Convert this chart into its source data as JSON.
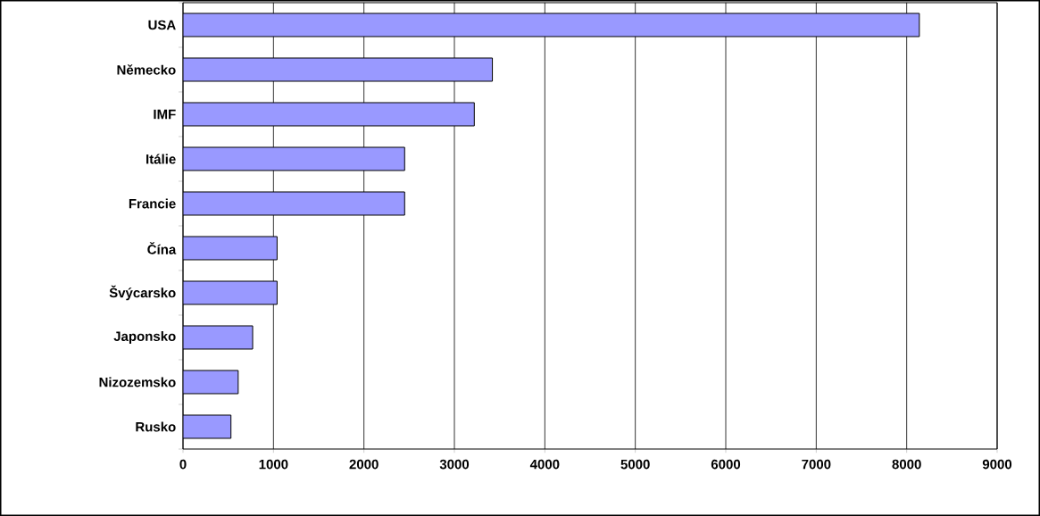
{
  "chart_data": {
    "type": "bar",
    "orientation": "horizontal",
    "categories": [
      "USA",
      "Německo",
      "IMF",
      "Itálie",
      "Francie",
      "Čína",
      "Švýcarsko",
      "Japonsko",
      "Nizozemsko",
      "Rusko"
    ],
    "values": [
      8140,
      3420,
      3220,
      2450,
      2450,
      1040,
      1040,
      770,
      610,
      530
    ],
    "color": "#9999ff",
    "xlim": [
      0,
      9000
    ],
    "xticks": [
      0,
      1000,
      2000,
      3000,
      4000,
      5000,
      6000,
      7000,
      8000,
      9000
    ],
    "grid": "x"
  }
}
